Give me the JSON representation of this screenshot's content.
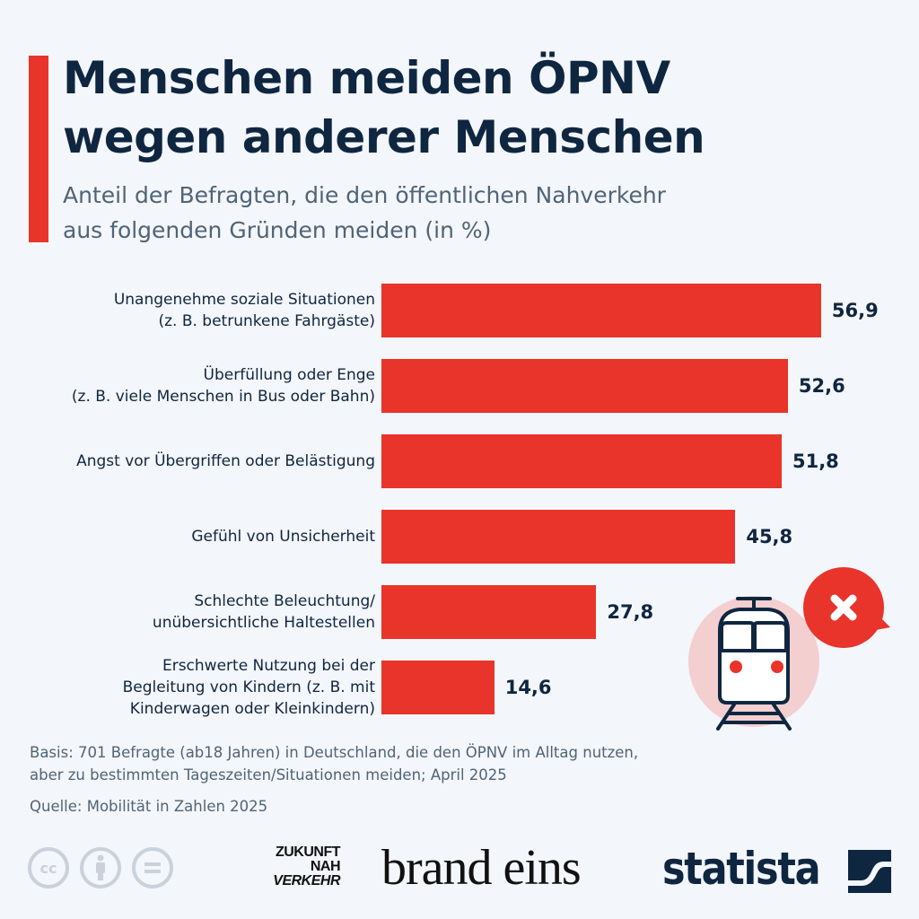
{
  "header": {
    "title_line1": "Menschen meiden ÖPNV",
    "title_line2": "wegen anderer Menschen",
    "subtitle_line1": "Anteil der Befragten, die den öffentlichen Nahverkehr",
    "subtitle_line2": "aus folgenden Gründen meiden (in %)"
  },
  "colors": {
    "accent": "#e8342a",
    "bar": "#e8342a",
    "title": "#0f2640",
    "subtitle": "#4f6478",
    "background": "#f3f6fa",
    "illustration_circle": "#f4cfd0"
  },
  "chart_data": {
    "type": "bar",
    "orientation": "horizontal",
    "title": "Menschen meiden ÖPNV wegen anderer Menschen",
    "subtitle": "Anteil der Befragten, die den öffentlichen Nahverkehr aus folgenden Gründen meiden (in %)",
    "xlabel": "",
    "ylabel": "",
    "unit": "%",
    "xlim": [
      0,
      60
    ],
    "grid": false,
    "legend": "none",
    "categories": [
      [
        "Unangenehme soziale Situationen",
        "(z. B. betrunkene Fahrgäste)"
      ],
      [
        "Überfüllung oder Enge",
        "(z. B. viele Menschen in Bus oder Bahn)"
      ],
      [
        "Angst vor Übergriffen oder Belästigung"
      ],
      [
        "Gefühl von Unsicherheit"
      ],
      [
        "Schlechte Beleuchtung/",
        "unübersichtliche Haltestellen"
      ],
      [
        "Erschwerte Nutzung bei der",
        "Begleitung von Kindern (z. B. mit",
        "Kinderwagen oder Kleinkindern)"
      ]
    ],
    "values": [
      56.9,
      52.6,
      51.8,
      45.8,
      27.8,
      14.6
    ],
    "value_labels": [
      "56,9",
      "52,6",
      "51,8",
      "45,8",
      "27,8",
      "14,6"
    ]
  },
  "footer": {
    "basis_line1": "Basis: 701 Befragte (ab18 Jahren) in Deutschland, die den ÖPNV im Alltag nutzen,",
    "basis_line2": "aber zu bestimmten Tageszeiten/Situationen meiden; April 2025",
    "source": "Quelle: Mobilität in Zahlen 2025",
    "license_icons": [
      "cc-icon",
      "attribution-icon",
      "no-derivatives-icon"
    ],
    "partner_logo_1": [
      "ZUKUNFT",
      "NAH",
      "VERKEHR"
    ],
    "partner_logo_2": "brand eins",
    "brand_logo": "statista"
  },
  "illustration": {
    "icons": [
      "train-icon",
      "close-speech-bubble-icon"
    ]
  }
}
